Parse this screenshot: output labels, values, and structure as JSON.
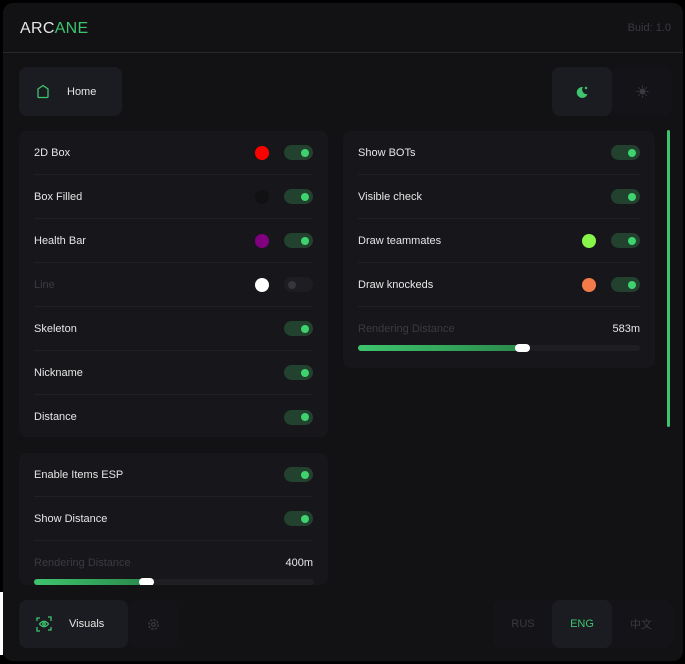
{
  "header": {
    "logo_part1": "ARC",
    "logo_part2": "ANE",
    "build": "Buid: 1.0"
  },
  "nav": {
    "home_label": "Home",
    "home_icon": "home-icon",
    "theme_dark_icon": "moon-icon",
    "theme_light_icon": "sun-icon",
    "active_theme": "dark"
  },
  "player_esp": {
    "rows": [
      {
        "label": "2D Box",
        "color": "#ff0000",
        "enabled": true
      },
      {
        "label": "Box Filled",
        "color": "#111114",
        "enabled": true
      },
      {
        "label": "Health Bar",
        "color": "#800080",
        "enabled": true
      },
      {
        "label": "Line",
        "color": "#ffffff",
        "enabled": false
      },
      {
        "label": "Skeleton",
        "enabled": true
      },
      {
        "label": "Nickname",
        "enabled": true
      },
      {
        "label": "Distance",
        "enabled": true
      }
    ]
  },
  "items_esp": {
    "rows": [
      {
        "label": "Enable Items ESP",
        "enabled": true
      },
      {
        "label": "Show Distance",
        "enabled": true
      }
    ],
    "distance_label": "Rendering Distance",
    "distance_value": "400m",
    "distance_fraction": 0.4
  },
  "other": {
    "rows": [
      {
        "label": "Show BOTs",
        "enabled": true
      },
      {
        "label": "Visible check",
        "enabled": true
      },
      {
        "label": "Draw teammates",
        "color": "#88f54a",
        "enabled": true
      },
      {
        "label": "Draw knockeds",
        "color": "#f57a4a",
        "enabled": true
      }
    ],
    "distance_label": "Rendering Distance",
    "distance_value": "583m",
    "distance_fraction": 0.583
  },
  "footer": {
    "visuals_label": "Visuals",
    "languages": [
      "RUS",
      "ENG",
      "中文"
    ],
    "selected_language": "ENG"
  },
  "colors": {
    "accent": "#3ec46d",
    "background": "#121215",
    "card": "#17171b"
  }
}
